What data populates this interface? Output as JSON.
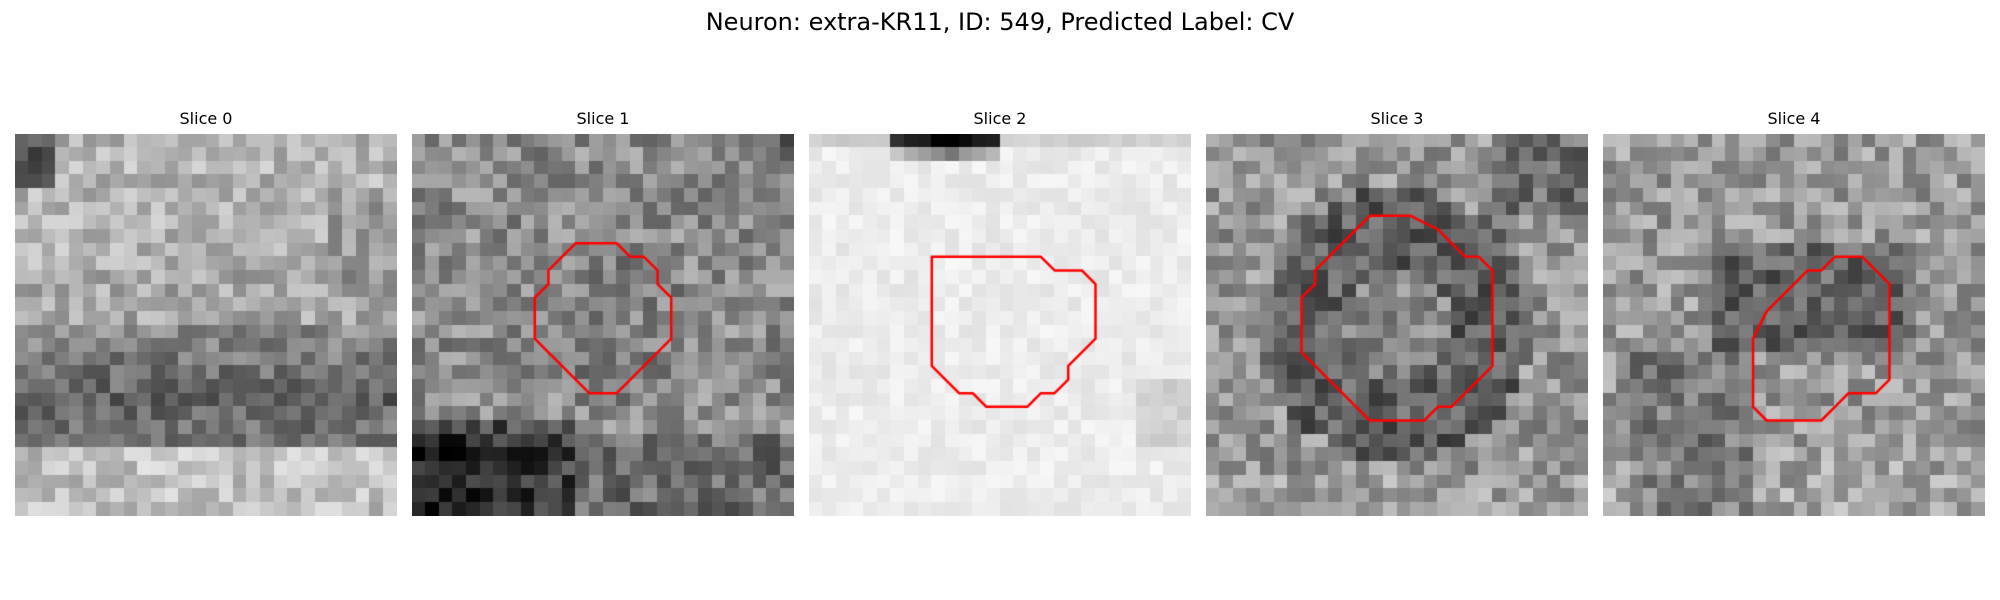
{
  "figure": {
    "title": "Neuron: extra-KR11, ID: 549, Predicted Label: CV"
  },
  "colors": {
    "background": "#ffffff",
    "outline": "#ff0000",
    "colormap": "grayscale"
  },
  "panels": [
    {
      "title": "Slice 0",
      "has_outline": false,
      "appearance": "gray texture, dark top-left corner, dark horizontal band lower-middle"
    },
    {
      "title": "Slice 1",
      "has_outline": true,
      "appearance": "gray texture, dark band at bottom-left"
    },
    {
      "title": "Slice 2",
      "has_outline": true,
      "appearance": "very light, dark blob at top-center edge"
    },
    {
      "title": "Slice 3",
      "has_outline": true,
      "appearance": "gray texture, dark ring around center"
    },
    {
      "title": "Slice 4",
      "has_outline": true,
      "appearance": "gray texture, dark region upper-middle"
    }
  ]
}
